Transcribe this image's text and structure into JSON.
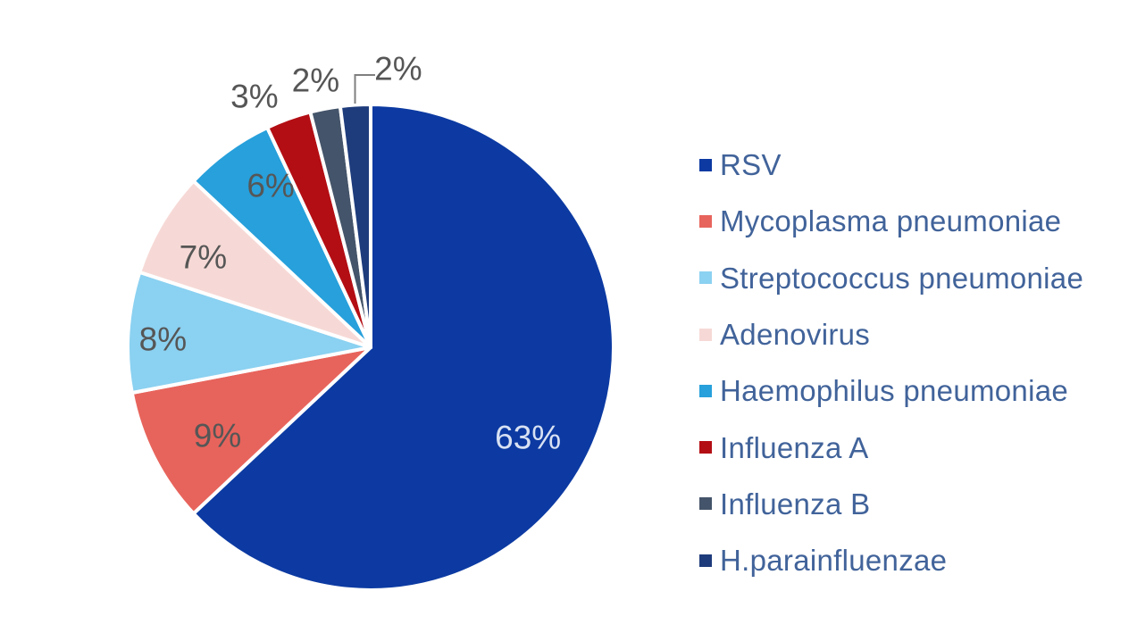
{
  "chart_data": {
    "type": "pie",
    "unit": "%",
    "legend_position": "right",
    "slices": [
      {
        "label": "RSV",
        "value": 63,
        "pct_label": "63%",
        "color": "#0C3AA2"
      },
      {
        "label": "Mycoplasma pneumoniae",
        "value": 9,
        "pct_label": "9%",
        "color": "#E7645C"
      },
      {
        "label": "Streptococcus pneumoniae",
        "value": 8,
        "pct_label": "8%",
        "color": "#8BD1F1"
      },
      {
        "label": "Adenovirus",
        "value": 7,
        "pct_label": "7%",
        "color": "#F6D9D6"
      },
      {
        "label": "Haemophilus pneumoniae",
        "value": 6,
        "pct_label": "6%",
        "color": "#27A0DB"
      },
      {
        "label": "Influenza A",
        "value": 3,
        "pct_label": "3%",
        "color": "#B30E14"
      },
      {
        "label": "Influenza B",
        "value": 2,
        "pct_label": "2%",
        "color": "#44546A"
      },
      {
        "label": "H.parainfluenzae",
        "value": 2,
        "pct_label": "2%",
        "color": "#1E3C7C"
      }
    ],
    "colors": {
      "label_text": "#565656",
      "big_label_text": "#D8E1F3",
      "legend_text": "#41639A",
      "leader_line": "#7F7F7F",
      "slice_border": "#FFFFFF"
    }
  }
}
